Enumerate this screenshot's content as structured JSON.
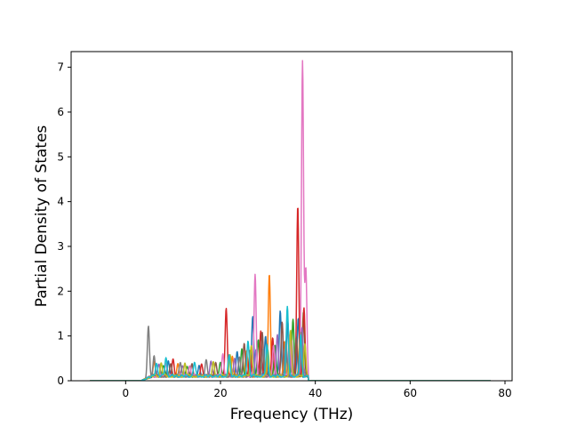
{
  "chart_data": {
    "type": "line",
    "title": "",
    "xlabel": "Frequency (THz)",
    "ylabel": "Partial Density of States",
    "xlim": [
      -11.5,
      81.5
    ],
    "ylim": [
      0,
      7.35
    ],
    "xticks": [
      0,
      20,
      40,
      60,
      80
    ],
    "yticks": [
      0,
      1,
      2,
      3,
      4,
      5,
      6,
      7
    ],
    "xtick_labels": [
      "0",
      "20",
      "40",
      "60",
      "80"
    ],
    "ytick_labels": [
      "0",
      "1",
      "2",
      "3",
      "4",
      "5",
      "6",
      "7"
    ],
    "grid": false,
    "legend": "none",
    "x_range": [
      -7.5,
      77
    ],
    "band_range": [
      3.2,
      38.5
    ],
    "series": [
      {
        "color": "#1f77b4",
        "peaks": [
          [
            9,
            0.35
          ],
          [
            15.5,
            0.25
          ],
          [
            23.5,
            0.55
          ],
          [
            26.8,
            1.3
          ],
          [
            29.5,
            0.9
          ],
          [
            32.6,
            1.48
          ],
          [
            34.2,
            1.2
          ],
          [
            36.4,
            1.3
          ]
        ]
      },
      {
        "color": "#ff7f0e",
        "peaks": [
          [
            6,
            0.3
          ],
          [
            11,
            0.25
          ],
          [
            22.5,
            0.45
          ],
          [
            25.5,
            0.55
          ],
          [
            30.3,
            2.25
          ],
          [
            33.5,
            0.75
          ],
          [
            36.8,
            1.1
          ]
        ]
      },
      {
        "color": "#2ca02c",
        "peaks": [
          [
            8,
            0.25
          ],
          [
            13,
            0.22
          ],
          [
            20,
            0.3
          ],
          [
            24.5,
            0.6
          ],
          [
            28,
            0.8
          ],
          [
            31.5,
            0.7
          ],
          [
            35.3,
            1.28
          ],
          [
            37.5,
            1.45
          ]
        ]
      },
      {
        "color": "#d62728",
        "peaks": [
          [
            10,
            0.35
          ],
          [
            16,
            0.28
          ],
          [
            21.2,
            1.5
          ],
          [
            26.2,
            0.55
          ],
          [
            28.5,
            1.0
          ],
          [
            31,
            0.85
          ],
          [
            36.3,
            3.77
          ],
          [
            37.6,
            1.55
          ]
        ]
      },
      {
        "color": "#9467bd",
        "peaks": [
          [
            7,
            0.28
          ],
          [
            12,
            0.25
          ],
          [
            18,
            0.35
          ],
          [
            23,
            0.4
          ],
          [
            27.5,
            0.6
          ],
          [
            32,
            0.95
          ],
          [
            35,
            0.8
          ],
          [
            37.2,
            1.1
          ]
        ]
      },
      {
        "color": "#8c564b",
        "peaks": [
          [
            9.5,
            0.3
          ],
          [
            14,
            0.28
          ],
          [
            19,
            0.32
          ],
          [
            25,
            0.7
          ],
          [
            28.8,
            1.0
          ],
          [
            33,
            1.2
          ],
          [
            36,
            0.9
          ]
        ]
      },
      {
        "color": "#e377c2",
        "peaks": [
          [
            8.5,
            0.3
          ],
          [
            13.5,
            0.25
          ],
          [
            20.5,
            0.5
          ],
          [
            27.3,
            2.27
          ],
          [
            31.2,
            0.7
          ],
          [
            34.6,
            0.9
          ],
          [
            37.3,
            7.05
          ],
          [
            38,
            2.4
          ]
        ]
      },
      {
        "color": "#7f7f7f",
        "peaks": [
          [
            4.8,
            1.14
          ],
          [
            6,
            0.45
          ],
          [
            11.5,
            0.3
          ],
          [
            17,
            0.35
          ],
          [
            24,
            0.4
          ],
          [
            29,
            0.6
          ],
          [
            33.8,
            0.8
          ],
          [
            37,
            1.0
          ]
        ]
      },
      {
        "color": "#bcbd22",
        "peaks": [
          [
            7.5,
            0.3
          ],
          [
            12.5,
            0.28
          ],
          [
            18.5,
            0.3
          ],
          [
            22,
            0.5
          ],
          [
            26.5,
            0.7
          ],
          [
            30,
            0.6
          ],
          [
            34.8,
            1.0
          ],
          [
            37.8,
            0.7
          ]
        ]
      },
      {
        "color": "#17becf",
        "peaks": [
          [
            6.5,
            0.3
          ],
          [
            8.5,
            0.42
          ],
          [
            14.5,
            0.3
          ],
          [
            21.8,
            0.45
          ],
          [
            25.8,
            0.8
          ],
          [
            29.8,
            0.7
          ],
          [
            34.1,
            1.52
          ],
          [
            36.9,
            0.9
          ]
        ]
      }
    ]
  }
}
